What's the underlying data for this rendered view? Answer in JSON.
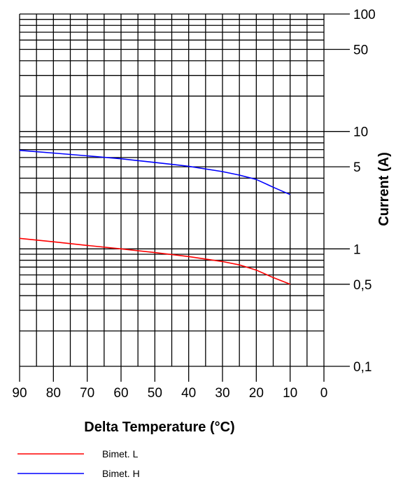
{
  "chart_data": {
    "type": "line",
    "xlabel": "Delta Temperature (°C)",
    "ylabel": "Current (A)",
    "x_reversed": true,
    "xlim": [
      90,
      0
    ],
    "x_ticks": [
      90,
      80,
      70,
      60,
      50,
      40,
      30,
      20,
      10,
      0
    ],
    "x_tick_labels": [
      "90",
      "80",
      "70",
      "60",
      "50",
      "40",
      "30",
      "20",
      "10",
      "0"
    ],
    "y_scale": "log",
    "ylim": [
      0.1,
      100
    ],
    "y_ticks": [
      0.1,
      0.5,
      1,
      5,
      10,
      50,
      100
    ],
    "y_tick_labels": [
      "0,1",
      "0,5",
      "1",
      "5",
      "10",
      "50",
      "100"
    ],
    "grid": true,
    "legend_position": "bottom-left",
    "series": [
      {
        "name": "Bimet. L",
        "color": "#ff0000",
        "x": [
          90,
          80,
          70,
          60,
          50,
          40,
          30,
          25,
          20,
          15,
          10
        ],
        "y": [
          1.23,
          1.15,
          1.07,
          1.0,
          0.93,
          0.86,
          0.78,
          0.73,
          0.66,
          0.57,
          0.5
        ]
      },
      {
        "name": "Bimet. H",
        "color": "#0000ff",
        "x": [
          90,
          80,
          70,
          60,
          50,
          40,
          30,
          25,
          20,
          15,
          10
        ],
        "y": [
          6.9,
          6.55,
          6.2,
          5.85,
          5.45,
          5.05,
          4.55,
          4.25,
          3.9,
          3.35,
          2.9
        ]
      }
    ]
  }
}
